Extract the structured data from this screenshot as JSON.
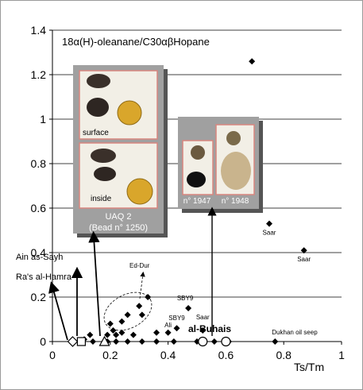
{
  "chart_data": {
    "type": "scatter",
    "title": "18α(H)-oleanane/C30αβHopane",
    "xlabel": "Ts/Tm",
    "ylabel": "",
    "xlim": [
      0,
      1
    ],
    "ylim": [
      0,
      1.4
    ],
    "x_ticks": [
      "0",
      "0.2",
      "0.4",
      "0.6",
      "0.8",
      "1"
    ],
    "y_ticks": [
      "0",
      "0.2",
      "0.4",
      "0.6",
      "0.8",
      "1",
      "1.2",
      "1.4"
    ],
    "grid": "horizontal",
    "legend": "none",
    "colors": {
      "marker": "#000000",
      "photo_panel": "#a0a0a0",
      "photo_shadow": "#555555",
      "photo_border": "#d7867f",
      "grid": "#000000"
    },
    "series": [
      {
        "marker": "filled-diamond",
        "points": [
          {
            "x": 0.69,
            "y": 1.26
          },
          {
            "x": 0.75,
            "y": 0.53,
            "label": "Saar"
          },
          {
            "x": 0.87,
            "y": 0.41,
            "label": "Saar"
          },
          {
            "x": 0.47,
            "y": 0.15,
            "label": "SBY9"
          },
          {
            "x": 0.43,
            "y": 0.06,
            "label": "SBY9"
          },
          {
            "x": 0.52,
            "y": 0.05,
            "label": "Saar"
          },
          {
            "x": 0.4,
            "y": 0.04,
            "label": "Ali"
          },
          {
            "x": 0.33,
            "y": 0.2
          },
          {
            "x": 0.3,
            "y": 0.16
          },
          {
            "x": 0.31,
            "y": 0.12
          },
          {
            "x": 0.26,
            "y": 0.12
          },
          {
            "x": 0.24,
            "y": 0.09
          },
          {
            "x": 0.2,
            "y": 0.08
          },
          {
            "x": 0.21,
            "y": 0.05
          },
          {
            "x": 0.24,
            "y": 0.04
          },
          {
            "x": 0.19,
            "y": 0.03
          },
          {
            "x": 0.22,
            "y": 0.03
          },
          {
            "x": 0.28,
            "y": 0.03
          },
          {
            "x": 0.36,
            "y": 0.04
          },
          {
            "x": 0.13,
            "y": 0.03
          },
          {
            "x": 0.11,
            "y": 0.01
          },
          {
            "x": 0.14,
            "y": 0.0
          },
          {
            "x": 0.19,
            "y": 0.0
          },
          {
            "x": 0.22,
            "y": 0.0
          },
          {
            "x": 0.26,
            "y": 0.0
          },
          {
            "x": 0.31,
            "y": 0.0
          },
          {
            "x": 0.36,
            "y": 0.0
          },
          {
            "x": 0.42,
            "y": 0.0
          },
          {
            "x": 0.5,
            "y": 0.0
          },
          {
            "x": 0.56,
            "y": 0.0
          },
          {
            "x": 0.61,
            "y": 0.0
          },
          {
            "x": 0.77,
            "y": 0.0,
            "label": "Dukhan oil seep"
          }
        ]
      },
      {
        "marker": "open-diamond",
        "points": [
          {
            "x": 0.07,
            "y": 0.0
          }
        ]
      },
      {
        "marker": "open-square",
        "points": [
          {
            "x": 0.1,
            "y": 0.0
          }
        ]
      },
      {
        "marker": "open-triangle",
        "points": [
          {
            "x": 0.18,
            "y": 0.0
          }
        ]
      },
      {
        "marker": "open-circle",
        "points": [
          {
            "x": 0.52,
            "y": 0.0
          },
          {
            "x": 0.6,
            "y": 0.0
          }
        ]
      }
    ],
    "annotations": [
      {
        "text": "Ain as-Sayh"
      },
      {
        "text": "Ra's al-Hamra"
      },
      {
        "text": "Ed-Dur"
      },
      {
        "text": "al-Buhais"
      }
    ],
    "photo_panels": [
      {
        "captions": [
          "surface",
          "inside"
        ],
        "label_line1": "UAQ 2",
        "label_line2": "(Bead n° 1250)"
      },
      {
        "captions": [],
        "label_line1": "n° 1947",
        "label_line2": "n° 1948"
      }
    ]
  }
}
